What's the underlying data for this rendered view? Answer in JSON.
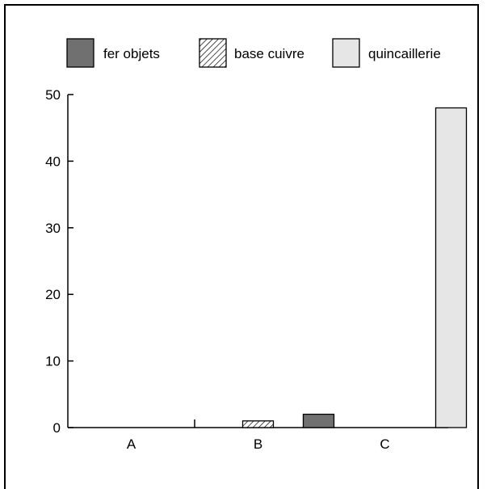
{
  "chart_data": {
    "type": "bar",
    "categories": [
      "A",
      "B",
      "C"
    ],
    "series": [
      {
        "name": "fer objets",
        "values": [
          0,
          0,
          2
        ],
        "color": "#707070",
        "pattern": "solid"
      },
      {
        "name": "base cuivre",
        "values": [
          0,
          1,
          0
        ],
        "color": "#ffffff",
        "pattern": "hatch"
      },
      {
        "name": "quincaillerie",
        "values": [
          0,
          0,
          48
        ],
        "color": "#e6e6e6",
        "pattern": "solid"
      }
    ],
    "yticks": [
      0,
      10,
      20,
      30,
      40,
      50
    ],
    "ylim": [
      0,
      50
    ],
    "title": "",
    "xlabel": "",
    "ylabel": "",
    "legend_position": "top",
    "grid": false
  }
}
